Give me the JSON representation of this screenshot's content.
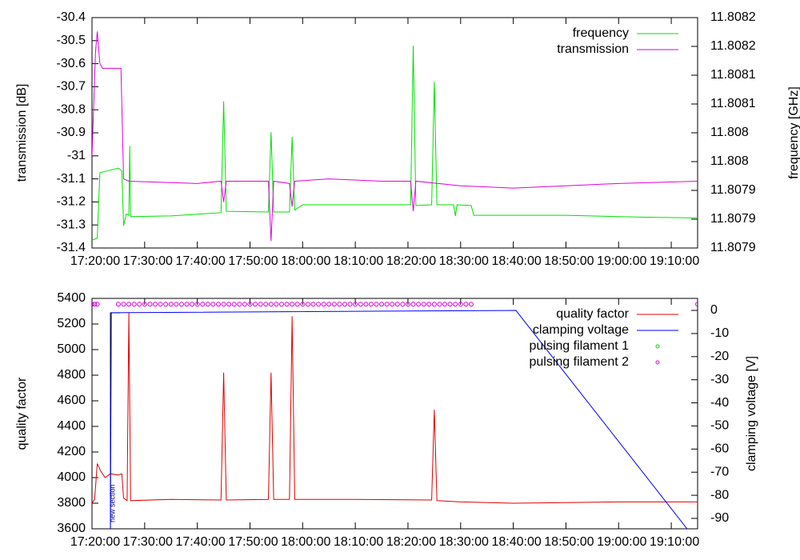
{
  "chart_data": [
    {
      "type": "line",
      "ylabel": "transmission [dB]",
      "y2label": "frequency [GHz]",
      "xlim": [
        "17:20:00",
        "19:15:00"
      ],
      "xticks": [
        "17:20:00",
        "17:30:00",
        "17:40:00",
        "17:50:00",
        "18:00:00",
        "18:10:00",
        "18:20:00",
        "18:30:00",
        "18:40:00",
        "18:50:00",
        "19:00:00",
        "19:10:00"
      ],
      "ylim": [
        -31.4,
        -30.4
      ],
      "yticks": [
        -31.4,
        -31.3,
        -31.2,
        -31.1,
        -31,
        -30.9,
        -30.8,
        -30.7,
        -30.6,
        -30.5,
        -30.4
      ],
      "y2lim": [
        11.80786,
        11.808212
      ],
      "y2ticks": [
        {
          "value": 11.808212,
          "label": "11.8082"
        },
        {
          "value": 11.808168,
          "label": "11.8082"
        },
        {
          "value": 11.808124,
          "label": "11.8081"
        },
        {
          "value": 11.80808,
          "label": "11.8081"
        },
        {
          "value": 11.808036,
          "label": "11.808"
        },
        {
          "value": 11.807992,
          "label": "11.808"
        },
        {
          "value": 11.807948,
          "label": "11.8079"
        },
        {
          "value": 11.807904,
          "label": "11.8079"
        },
        {
          "value": 11.80786,
          "label": "11.8079"
        }
      ],
      "legend": "top-right",
      "series": [
        {
          "name": "frequency",
          "color": "#00e000",
          "axis": "y2",
          "type": "line",
          "x": [
            "17:20:00",
            "17:21:00",
            "17:21:30",
            "17:23:00",
            "17:25:00",
            "17:25:40",
            "17:26:00",
            "17:26:30",
            "17:27:00",
            "17:27:10",
            "17:27:20",
            "17:35:00",
            "17:44:30",
            "17:45:00",
            "17:45:30",
            "17:53:30",
            "17:54:00",
            "17:54:30",
            "17:57:30",
            "17:58:00",
            "17:58:30",
            "18:00:00",
            "18:10:00",
            "18:20:30",
            "18:21:00",
            "18:21:30",
            "18:24:30",
            "18:25:00",
            "18:25:30",
            "18:28:40",
            "18:29:00",
            "18:29:20",
            "18:32:00",
            "18:32:30",
            "18:50:00",
            "19:05:00",
            "19:15:00"
          ],
          "values": [
            11.807872,
            11.807875,
            11.807975,
            11.807978,
            11.807982,
            11.807978,
            11.807894,
            11.807912,
            11.80791,
            11.808016,
            11.807908,
            11.807909,
            11.807914,
            11.808084,
            11.807916,
            11.807915,
            11.808037,
            11.807915,
            11.807915,
            11.80803,
            11.807918,
            11.807926,
            11.807926,
            11.807926,
            11.808169,
            11.807925,
            11.807926,
            11.808114,
            11.807926,
            11.807926,
            11.807909,
            11.807926,
            11.807925,
            11.80791,
            11.80791,
            11.807907,
            11.807906
          ]
        },
        {
          "name": "transmission",
          "color": "#e000e0",
          "axis": "y",
          "type": "line",
          "x": [
            "17:20:00",
            "17:20:40",
            "17:21:00",
            "17:21:30",
            "17:22:00",
            "17:25:30",
            "17:26:00",
            "17:27:00",
            "17:40:00",
            "17:44:30",
            "17:45:00",
            "17:45:30",
            "17:53:30",
            "17:54:00",
            "17:54:30",
            "17:57:30",
            "17:58:00",
            "17:58:30",
            "18:05:00",
            "18:15:00",
            "18:20:30",
            "18:21:00",
            "18:21:30",
            "18:30:00",
            "18:40:00",
            "18:50:00",
            "19:00:00",
            "19:15:00"
          ],
          "values": [
            -31.0,
            -30.55,
            -30.46,
            -30.6,
            -30.62,
            -30.62,
            -31.1,
            -31.11,
            -31.12,
            -31.11,
            -31.2,
            -31.11,
            -31.11,
            -31.37,
            -31.11,
            -31.12,
            -31.22,
            -31.11,
            -31.1,
            -31.11,
            -31.11,
            -31.24,
            -31.11,
            -31.13,
            -31.14,
            -31.13,
            -31.12,
            -31.11
          ]
        }
      ]
    },
    {
      "type": "line",
      "ylabel": "quality factor",
      "y2label": "clamping voltage [V]",
      "xlim": [
        "17:20:00",
        "19:15:00"
      ],
      "xticks": [
        "17:20:00",
        "17:30:00",
        "17:40:00",
        "17:50:00",
        "18:00:00",
        "18:10:00",
        "18:20:00",
        "18:30:00",
        "18:40:00",
        "18:50:00",
        "19:00:00",
        "19:10:00"
      ],
      "ylim": [
        3600,
        5400
      ],
      "yticks": [
        3600,
        3800,
        4000,
        4200,
        4400,
        4600,
        4800,
        5000,
        5200,
        5400
      ],
      "y2lim": [
        -94.5,
        5.2
      ],
      "y2ticks": [
        -90,
        -80,
        -70,
        -60,
        -50,
        -40,
        -30,
        -20,
        -10,
        0
      ],
      "legend": "top-right",
      "annotation": {
        "text": "new section",
        "x": "17:23:30"
      },
      "series": [
        {
          "name": "quality factor",
          "color": "#e00000",
          "axis": "y",
          "type": "line",
          "x": [
            "17:20:00",
            "17:20:30",
            "17:21:00",
            "17:21:40",
            "17:22:30",
            "17:23:30",
            "17:25:00",
            "17:25:40",
            "17:26:00",
            "17:26:40",
            "17:27:00",
            "17:27:20",
            "17:35:00",
            "17:44:30",
            "17:45:00",
            "17:45:30",
            "17:53:30",
            "17:54:00",
            "17:54:30",
            "17:57:30",
            "17:58:00",
            "17:58:30",
            "18:10:00",
            "18:24:30",
            "18:25:00",
            "18:25:30",
            "18:30:00",
            "18:40:00",
            "18:50:00",
            "19:00:00",
            "19:15:00"
          ],
          "values": [
            3800,
            3830,
            4110,
            4050,
            4000,
            4030,
            4020,
            4030,
            3840,
            3820,
            5290,
            3820,
            3830,
            3825,
            4820,
            3825,
            3830,
            4820,
            3830,
            3830,
            5260,
            3830,
            3830,
            3825,
            4530,
            3820,
            3810,
            3800,
            3805,
            3810,
            3810
          ]
        },
        {
          "name": "clamping voltage",
          "color": "#0000ff",
          "axis": "y2",
          "type": "line",
          "x": [
            "17:23:30",
            "17:23:40",
            "18:40:30",
            "19:13:00"
          ],
          "values": [
            -94.5,
            -1,
            0,
            -94.5
          ]
        },
        {
          "name": "pulsing filament 1",
          "color": "#00e000",
          "axis": "y",
          "type": "scatter",
          "x": [],
          "values": []
        },
        {
          "name": "pulsing filament 2",
          "color": "#e000e0",
          "axis": "y",
          "type": "scatter",
          "x": [
            "17:20:00",
            "17:20:30",
            "17:21:00",
            "17:25:00",
            "17:26:00",
            "17:27:00",
            "17:28:00",
            "17:29:00",
            "17:30:00",
            "17:31:00",
            "17:32:00",
            "17:33:00",
            "17:34:00",
            "17:35:00",
            "17:36:00",
            "17:37:00",
            "17:38:00",
            "17:39:00",
            "17:40:00",
            "17:41:00",
            "17:42:00",
            "17:43:00",
            "17:44:00",
            "17:45:00",
            "17:46:00",
            "17:47:00",
            "17:48:00",
            "17:49:00",
            "17:50:00",
            "17:51:00",
            "17:52:00",
            "17:53:00",
            "17:54:00",
            "17:55:00",
            "17:56:00",
            "17:57:00",
            "17:58:00",
            "17:59:00",
            "18:00:00",
            "18:01:00",
            "18:02:00",
            "18:03:00",
            "18:04:00",
            "18:05:00",
            "18:06:00",
            "18:07:00",
            "18:08:00",
            "18:09:00",
            "18:10:00",
            "18:11:00",
            "18:12:00",
            "18:13:00",
            "18:14:00",
            "18:15:00",
            "18:16:00",
            "18:17:00",
            "18:18:00",
            "18:19:00",
            "18:20:00",
            "18:21:00",
            "18:22:00",
            "18:23:00",
            "18:24:00",
            "18:25:00",
            "18:26:00",
            "18:27:00",
            "18:28:00",
            "18:29:00",
            "18:30:00",
            "18:31:00",
            "18:32:00",
            "19:15:00"
          ],
          "values": [
            5355,
            5355,
            5355,
            5355,
            5355,
            5355,
            5355,
            5355,
            5355,
            5355,
            5355,
            5355,
            5355,
            5355,
            5355,
            5355,
            5355,
            5355,
            5355,
            5355,
            5355,
            5355,
            5355,
            5355,
            5355,
            5355,
            5355,
            5355,
            5355,
            5355,
            5355,
            5355,
            5355,
            5355,
            5355,
            5355,
            5355,
            5355,
            5355,
            5355,
            5355,
            5355,
            5355,
            5355,
            5355,
            5355,
            5355,
            5355,
            5355,
            5355,
            5355,
            5355,
            5355,
            5355,
            5355,
            5355,
            5355,
            5355,
            5355,
            5355,
            5355,
            5355,
            5355,
            5355,
            5355,
            5355,
            5355,
            5355,
            5355,
            5355,
            5355,
            5355
          ]
        }
      ]
    }
  ]
}
